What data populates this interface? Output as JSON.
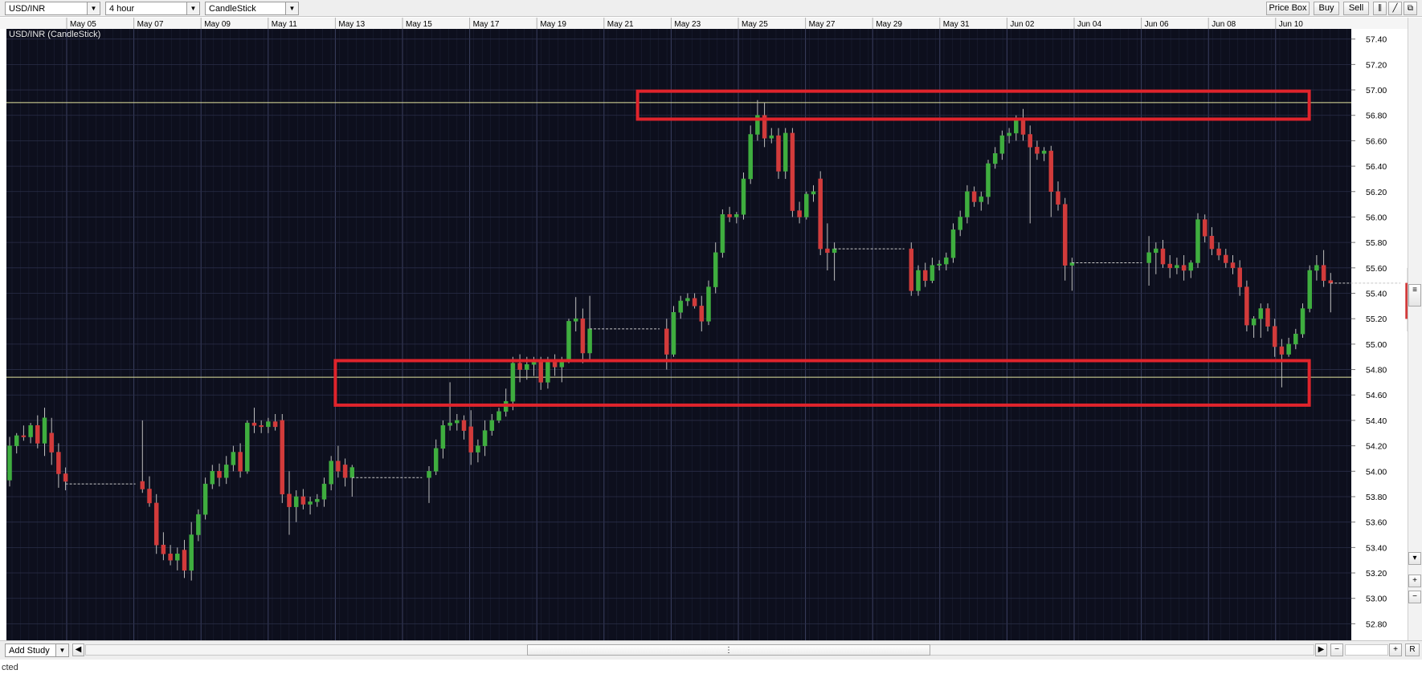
{
  "toolbar": {
    "symbol": "USD/INR",
    "interval": "4 hour",
    "chart_style": "CandleStick",
    "price_box_label": "Price Box",
    "buy_label": "Buy",
    "sell_label": "Sell"
  },
  "chart_caption": "USD/INR (CandleStick)",
  "bottom": {
    "add_study_label": "Add Study",
    "status_text": "cted"
  },
  "colors": {
    "background": "#0d0f1d",
    "up_candle": "#3fae3f",
    "down_candle": "#d23b3b",
    "wick": "#bdbdbd",
    "horizontal_line": "#e3e3a0",
    "annotation_box": "#e0242c",
    "grid": "#2a2e48"
  },
  "chart_data": {
    "type": "candlestick",
    "title": "USD/INR (CandleStick)",
    "xlabel": "",
    "ylabel": "",
    "ylim": [
      52.67,
      57.48
    ],
    "grid": true,
    "date_ticks": [
      "May 05",
      "May 07",
      "May 09",
      "May 11",
      "May 13",
      "May 15",
      "May 17",
      "May 19",
      "May 21",
      "May 23",
      "May 25",
      "May 27",
      "May 29",
      "May 31",
      "Jun 02",
      "Jun 04",
      "Jun 06",
      "Jun 08",
      "Jun 10"
    ],
    "price_ticks": [
      "57.40",
      "57.20",
      "57.00",
      "56.80",
      "56.60",
      "56.40",
      "56.20",
      "56.00",
      "55.80",
      "55.60",
      "55.40",
      "55.20",
      "55.00",
      "54.80",
      "54.60",
      "54.40",
      "54.20",
      "54.00",
      "53.80",
      "53.60",
      "53.40",
      "53.20",
      "53.00",
      "52.80"
    ],
    "horizontal_lines": [
      56.9,
      54.74
    ],
    "annotation_zones": [
      {
        "from_date": "May 22",
        "to_date": "Jun 11",
        "low": 56.77,
        "high": 56.99
      },
      {
        "from_date": "May 13",
        "to_date": "Jun 11",
        "low": 54.52,
        "high": 54.87
      }
    ],
    "candles": [
      {
        "o": 53.93,
        "h": 54.27,
        "l": 53.88,
        "c": 54.2
      },
      {
        "o": 54.2,
        "h": 54.3,
        "l": 54.14,
        "c": 54.28
      },
      {
        "o": 54.28,
        "h": 54.36,
        "l": 54.24,
        "c": 54.27
      },
      {
        "o": 54.27,
        "h": 54.38,
        "l": 54.22,
        "c": 54.36
      },
      {
        "o": 54.36,
        "h": 54.44,
        "l": 54.18,
        "c": 54.22
      },
      {
        "o": 54.22,
        "h": 54.5,
        "l": 54.12,
        "c": 54.42
      },
      {
        "o": 54.3,
        "h": 54.42,
        "l": 54.05,
        "c": 54.15
      },
      {
        "o": 54.15,
        "h": 54.22,
        "l": 53.87,
        "c": 53.98
      },
      {
        "o": 53.98,
        "h": 54.03,
        "l": 53.85,
        "c": 53.92
      },
      {
        "type": "gap",
        "price": 53.9
      },
      {
        "o": 53.92,
        "h": 54.4,
        "l": 53.83,
        "c": 53.86
      },
      {
        "o": 53.86,
        "h": 53.96,
        "l": 53.72,
        "c": 53.75
      },
      {
        "o": 53.75,
        "h": 53.82,
        "l": 53.35,
        "c": 53.42
      },
      {
        "o": 53.42,
        "h": 53.52,
        "l": 53.3,
        "c": 53.35
      },
      {
        "o": 53.35,
        "h": 53.42,
        "l": 53.26,
        "c": 53.3
      },
      {
        "o": 53.3,
        "h": 53.4,
        "l": 53.22,
        "c": 53.35
      },
      {
        "o": 53.38,
        "h": 53.46,
        "l": 53.16,
        "c": 53.22
      },
      {
        "o": 53.22,
        "h": 53.6,
        "l": 53.14,
        "c": 53.5
      },
      {
        "o": 53.5,
        "h": 53.7,
        "l": 53.45,
        "c": 53.66
      },
      {
        "o": 53.66,
        "h": 53.95,
        "l": 53.62,
        "c": 53.9
      },
      {
        "o": 53.9,
        "h": 54.05,
        "l": 53.86,
        "c": 54.0
      },
      {
        "o": 54.0,
        "h": 54.06,
        "l": 53.88,
        "c": 53.95
      },
      {
        "o": 53.95,
        "h": 54.12,
        "l": 53.9,
        "c": 54.05
      },
      {
        "o": 54.05,
        "h": 54.2,
        "l": 54.0,
        "c": 54.15
      },
      {
        "o": 54.15,
        "h": 54.22,
        "l": 53.95,
        "c": 54.0
      },
      {
        "o": 54.0,
        "h": 54.4,
        "l": 53.98,
        "c": 54.38
      },
      {
        "o": 54.38,
        "h": 54.5,
        "l": 54.3,
        "c": 54.36
      },
      {
        "o": 54.36,
        "h": 54.4,
        "l": 54.3,
        "c": 54.35
      },
      {
        "o": 54.35,
        "h": 54.42,
        "l": 54.3,
        "c": 54.39
      },
      {
        "o": 54.39,
        "h": 54.45,
        "l": 54.32,
        "c": 54.35
      },
      {
        "o": 54.4,
        "h": 54.45,
        "l": 53.75,
        "c": 53.82
      },
      {
        "o": 53.82,
        "h": 54.0,
        "l": 53.5,
        "c": 53.72
      },
      {
        "o": 53.72,
        "h": 53.85,
        "l": 53.6,
        "c": 53.8
      },
      {
        "o": 53.8,
        "h": 53.86,
        "l": 53.7,
        "c": 53.74
      },
      {
        "o": 53.74,
        "h": 53.8,
        "l": 53.66,
        "c": 53.76
      },
      {
        "o": 53.76,
        "h": 53.82,
        "l": 53.72,
        "c": 53.78
      },
      {
        "o": 53.78,
        "h": 53.95,
        "l": 53.72,
        "c": 53.9
      },
      {
        "o": 53.9,
        "h": 54.12,
        "l": 53.85,
        "c": 54.08
      },
      {
        "o": 54.08,
        "h": 54.2,
        "l": 53.95,
        "c": 54.0
      },
      {
        "o": 54.05,
        "h": 54.1,
        "l": 53.88,
        "c": 53.95
      },
      {
        "o": 53.95,
        "h": 54.05,
        "l": 53.8,
        "c": 54.03
      },
      {
        "type": "gap",
        "price": 53.95
      },
      {
        "o": 53.95,
        "h": 54.04,
        "l": 53.75,
        "c": 54.0
      },
      {
        "o": 54.0,
        "h": 54.25,
        "l": 53.97,
        "c": 54.18
      },
      {
        "o": 54.18,
        "h": 54.4,
        "l": 54.1,
        "c": 54.36
      },
      {
        "o": 54.36,
        "h": 54.7,
        "l": 54.32,
        "c": 54.38
      },
      {
        "o": 54.38,
        "h": 54.45,
        "l": 54.32,
        "c": 54.4
      },
      {
        "o": 54.4,
        "h": 54.44,
        "l": 54.25,
        "c": 54.32
      },
      {
        "o": 54.35,
        "h": 54.48,
        "l": 54.05,
        "c": 54.15
      },
      {
        "o": 54.15,
        "h": 54.25,
        "l": 54.07,
        "c": 54.2
      },
      {
        "o": 54.2,
        "h": 54.4,
        "l": 54.12,
        "c": 54.32
      },
      {
        "o": 54.32,
        "h": 54.45,
        "l": 54.28,
        "c": 54.4
      },
      {
        "o": 54.4,
        "h": 54.5,
        "l": 54.38,
        "c": 54.47
      },
      {
        "o": 54.47,
        "h": 54.65,
        "l": 54.43,
        "c": 54.55
      },
      {
        "o": 54.55,
        "h": 54.9,
        "l": 54.48,
        "c": 54.85
      },
      {
        "o": 54.85,
        "h": 54.92,
        "l": 54.7,
        "c": 54.8
      },
      {
        "o": 54.8,
        "h": 54.9,
        "l": 54.72,
        "c": 54.84
      },
      {
        "o": 54.84,
        "h": 54.9,
        "l": 54.75,
        "c": 54.86
      },
      {
        "o": 54.86,
        "h": 54.9,
        "l": 54.64,
        "c": 54.7
      },
      {
        "o": 54.7,
        "h": 54.9,
        "l": 54.65,
        "c": 54.86
      },
      {
        "o": 54.86,
        "h": 54.92,
        "l": 54.75,
        "c": 54.82
      },
      {
        "o": 54.82,
        "h": 54.9,
        "l": 54.7,
        "c": 54.88
      },
      {
        "o": 54.88,
        "h": 55.2,
        "l": 54.85,
        "c": 55.18
      },
      {
        "o": 55.18,
        "h": 55.37,
        "l": 55.1,
        "c": 55.2
      },
      {
        "o": 55.2,
        "h": 55.28,
        "l": 54.85,
        "c": 54.93
      },
      {
        "o": 54.93,
        "h": 55.38,
        "l": 54.88,
        "c": 55.12
      },
      {
        "type": "gap",
        "price": 55.12
      },
      {
        "o": 55.12,
        "h": 55.2,
        "l": 54.8,
        "c": 54.92
      },
      {
        "o": 54.92,
        "h": 55.3,
        "l": 54.9,
        "c": 55.25
      },
      {
        "o": 55.25,
        "h": 55.38,
        "l": 55.2,
        "c": 55.34
      },
      {
        "o": 55.34,
        "h": 55.4,
        "l": 55.3,
        "c": 55.36
      },
      {
        "o": 55.36,
        "h": 55.4,
        "l": 55.28,
        "c": 55.3
      },
      {
        "o": 55.3,
        "h": 55.38,
        "l": 55.1,
        "c": 55.18
      },
      {
        "o": 55.18,
        "h": 55.5,
        "l": 55.15,
        "c": 55.45
      },
      {
        "o": 55.45,
        "h": 55.8,
        "l": 55.4,
        "c": 55.72
      },
      {
        "o": 55.72,
        "h": 56.06,
        "l": 55.68,
        "c": 56.02
      },
      {
        "o": 56.02,
        "h": 56.08,
        "l": 55.96,
        "c": 56.0
      },
      {
        "o": 56.0,
        "h": 56.04,
        "l": 55.95,
        "c": 56.02
      },
      {
        "o": 56.02,
        "h": 56.35,
        "l": 55.98,
        "c": 56.3
      },
      {
        "o": 56.3,
        "h": 56.72,
        "l": 56.26,
        "c": 56.65
      },
      {
        "o": 56.65,
        "h": 56.92,
        "l": 56.6,
        "c": 56.8
      },
      {
        "o": 56.8,
        "h": 56.9,
        "l": 56.55,
        "c": 56.62
      },
      {
        "o": 56.62,
        "h": 56.7,
        "l": 56.58,
        "c": 56.64
      },
      {
        "o": 56.64,
        "h": 56.7,
        "l": 56.3,
        "c": 56.36
      },
      {
        "o": 56.36,
        "h": 56.7,
        "l": 56.3,
        "c": 56.66
      },
      {
        "o": 56.66,
        "h": 56.7,
        "l": 56.0,
        "c": 56.05
      },
      {
        "o": 56.05,
        "h": 56.12,
        "l": 55.95,
        "c": 56.0
      },
      {
        "o": 56.0,
        "h": 56.2,
        "l": 55.98,
        "c": 56.18
      },
      {
        "o": 56.18,
        "h": 56.25,
        "l": 56.12,
        "c": 56.2
      },
      {
        "o": 56.3,
        "h": 56.36,
        "l": 55.7,
        "c": 55.75
      },
      {
        "o": 55.75,
        "h": 55.95,
        "l": 55.58,
        "c": 55.72
      },
      {
        "o": 55.72,
        "h": 55.8,
        "l": 55.5,
        "c": 55.75
      },
      {
        "type": "gap",
        "price": 55.75
      },
      {
        "o": 55.75,
        "h": 55.8,
        "l": 55.38,
        "c": 55.42
      },
      {
        "o": 55.42,
        "h": 55.62,
        "l": 55.38,
        "c": 55.58
      },
      {
        "o": 55.58,
        "h": 55.64,
        "l": 55.45,
        "c": 55.5
      },
      {
        "o": 55.5,
        "h": 55.68,
        "l": 55.48,
        "c": 55.62
      },
      {
        "o": 55.62,
        "h": 55.66,
        "l": 55.58,
        "c": 55.63
      },
      {
        "o": 55.63,
        "h": 55.72,
        "l": 55.58,
        "c": 55.68
      },
      {
        "o": 55.68,
        "h": 55.95,
        "l": 55.64,
        "c": 55.9
      },
      {
        "o": 55.9,
        "h": 56.05,
        "l": 55.85,
        "c": 56.0
      },
      {
        "o": 56.0,
        "h": 56.25,
        "l": 55.95,
        "c": 56.2
      },
      {
        "o": 56.2,
        "h": 56.24,
        "l": 56.08,
        "c": 56.12
      },
      {
        "o": 56.12,
        "h": 56.2,
        "l": 56.05,
        "c": 56.16
      },
      {
        "o": 56.16,
        "h": 56.45,
        "l": 56.1,
        "c": 56.42
      },
      {
        "o": 56.42,
        "h": 56.55,
        "l": 56.38,
        "c": 56.5
      },
      {
        "o": 56.5,
        "h": 56.68,
        "l": 56.45,
        "c": 56.64
      },
      {
        "o": 56.64,
        "h": 56.7,
        "l": 56.58,
        "c": 56.66
      },
      {
        "o": 56.66,
        "h": 56.8,
        "l": 56.6,
        "c": 56.76
      },
      {
        "o": 56.76,
        "h": 56.85,
        "l": 56.6,
        "c": 56.65
      },
      {
        "o": 56.65,
        "h": 56.72,
        "l": 55.95,
        "c": 56.55
      },
      {
        "o": 56.55,
        "h": 56.6,
        "l": 56.45,
        "c": 56.5
      },
      {
        "o": 56.5,
        "h": 56.55,
        "l": 56.44,
        "c": 56.52
      },
      {
        "o": 56.52,
        "h": 56.56,
        "l": 56.0,
        "c": 56.2
      },
      {
        "o": 56.2,
        "h": 56.28,
        "l": 56.05,
        "c": 56.1
      },
      {
        "o": 56.1,
        "h": 56.15,
        "l": 55.5,
        "c": 55.62
      },
      {
        "o": 55.62,
        "h": 55.68,
        "l": 55.42,
        "c": 55.64
      },
      {
        "type": "gap",
        "price": 55.64
      },
      {
        "o": 55.64,
        "h": 55.85,
        "l": 55.46,
        "c": 55.72
      },
      {
        "o": 55.72,
        "h": 55.8,
        "l": 55.55,
        "c": 55.75
      },
      {
        "o": 55.75,
        "h": 55.82,
        "l": 55.6,
        "c": 55.63
      },
      {
        "o": 55.63,
        "h": 55.7,
        "l": 55.52,
        "c": 55.6
      },
      {
        "o": 55.6,
        "h": 55.68,
        "l": 55.55,
        "c": 55.62
      },
      {
        "o": 55.62,
        "h": 55.7,
        "l": 55.5,
        "c": 55.58
      },
      {
        "o": 55.58,
        "h": 55.66,
        "l": 55.52,
        "c": 55.64
      },
      {
        "o": 55.64,
        "h": 56.03,
        "l": 55.6,
        "c": 55.98
      },
      {
        "o": 55.98,
        "h": 56.02,
        "l": 55.8,
        "c": 55.85
      },
      {
        "o": 55.85,
        "h": 55.92,
        "l": 55.7,
        "c": 55.75
      },
      {
        "o": 55.75,
        "h": 55.8,
        "l": 55.66,
        "c": 55.7
      },
      {
        "o": 55.7,
        "h": 55.75,
        "l": 55.6,
        "c": 55.64
      },
      {
        "o": 55.64,
        "h": 55.7,
        "l": 55.55,
        "c": 55.6
      },
      {
        "o": 55.6,
        "h": 55.66,
        "l": 55.38,
        "c": 55.45
      },
      {
        "o": 55.45,
        "h": 55.5,
        "l": 55.1,
        "c": 55.15
      },
      {
        "o": 55.15,
        "h": 55.22,
        "l": 55.05,
        "c": 55.2
      },
      {
        "o": 55.2,
        "h": 55.32,
        "l": 55.05,
        "c": 55.28
      },
      {
        "o": 55.28,
        "h": 55.32,
        "l": 55.1,
        "c": 55.14
      },
      {
        "o": 55.14,
        "h": 55.2,
        "l": 54.9,
        "c": 54.98
      },
      {
        "o": 54.98,
        "h": 55.04,
        "l": 54.66,
        "c": 54.92
      },
      {
        "o": 54.92,
        "h": 55.05,
        "l": 54.9,
        "c": 55.0
      },
      {
        "o": 55.0,
        "h": 55.12,
        "l": 54.96,
        "c": 55.08
      },
      {
        "o": 55.08,
        "h": 55.32,
        "l": 55.05,
        "c": 55.28
      },
      {
        "o": 55.28,
        "h": 55.62,
        "l": 55.25,
        "c": 55.58
      },
      {
        "o": 55.58,
        "h": 55.7,
        "l": 55.5,
        "c": 55.62
      },
      {
        "o": 55.62,
        "h": 55.74,
        "l": 55.45,
        "c": 55.5
      },
      {
        "o": 55.5,
        "h": 55.56,
        "l": 55.25,
        "c": 55.48
      },
      {
        "type": "gap",
        "price": 55.48
      },
      {
        "o": 55.48,
        "h": 55.6,
        "l": 55.1,
        "c": 55.2
      },
      {
        "o": 55.2,
        "h": 55.36,
        "l": 55.18,
        "c": 55.3
      }
    ]
  }
}
